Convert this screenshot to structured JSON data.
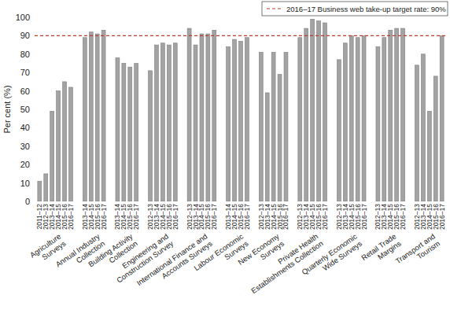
{
  "chart_data": {
    "type": "bar",
    "y_label": "Per cent (%)",
    "ylim": [
      0,
      100
    ],
    "yticks": [
      0,
      10,
      20,
      30,
      40,
      50,
      60,
      70,
      80,
      90,
      100
    ],
    "color": "#a3a3a3",
    "grid": false,
    "legend": "upper right",
    "target": {
      "value": 90,
      "label": "2016–17 Business web take-up target rate: 90%",
      "color": "#c0392b",
      "line_style": "dashed"
    },
    "groups": [
      {
        "label": "Agriculture\nSurveys",
        "categories": [
          "2011–12",
          "2012–13",
          "2013–14",
          "2014–15",
          "2015–16",
          "2016–17"
        ],
        "values": [
          11,
          15,
          49,
          60,
          65,
          62
        ]
      },
      {
        "label": "Annual Industry\nCollection",
        "categories": [
          "2013–14",
          "2014–15",
          "2015–16",
          "2016–17"
        ],
        "values": [
          89,
          92,
          91,
          93
        ]
      },
      {
        "label": "Building Activity\nCollection",
        "categories": [
          "2013–14",
          "2014–15",
          "2015–16",
          "2016–17"
        ],
        "values": [
          78,
          75,
          73,
          75
        ]
      },
      {
        "label": "Engineering and\nConstruction Survey",
        "categories": [
          "2012–13",
          "2013–14",
          "2014–15",
          "2015–16",
          "2016–17"
        ],
        "values": [
          71,
          85,
          86,
          85,
          86
        ]
      },
      {
        "label": "International Finance and\nAccounts Surveys",
        "categories": [
          "2012–13",
          "2013–14",
          "2014–15",
          "2015–16",
          "2016–17"
        ],
        "values": [
          94,
          85,
          91,
          91,
          93
        ]
      },
      {
        "label": "Labour Economic\nSurveys",
        "categories": [
          "2013–14",
          "2014–15",
          "2015–16",
          "2016–17"
        ],
        "values": [
          84,
          88,
          87,
          89
        ]
      },
      {
        "label": "New Economy\nSurveys",
        "categories": [
          "2012–13",
          "2013–14",
          "2014–15",
          "2015–16",
          "2016–17"
        ],
        "values": [
          81,
          59,
          81,
          69,
          81
        ]
      },
      {
        "label": "Private Health\nEstablishments Collection",
        "categories": [
          "2012–13",
          "2013–14",
          "2014–15",
          "2015–16",
          "2016–17"
        ],
        "values": [
          89,
          94,
          99,
          98,
          97
        ]
      },
      {
        "label": "Quarterly Economic\nWide Surveys",
        "categories": [
          "2012–13",
          "2013–14",
          "2014–15",
          "2015–16",
          "2016–17"
        ],
        "values": [
          77,
          86,
          90,
          89,
          90
        ]
      },
      {
        "label": "Retail Trade\nMargins",
        "categories": [
          "2012–13",
          "2013–14",
          "2014–15",
          "2015–16",
          "2016–17"
        ],
        "values": [
          84,
          89,
          93,
          94,
          94
        ]
      },
      {
        "label": "Transport and\nTourism",
        "categories": [
          "2012–13",
          "2013–14",
          "2014–15",
          "2015–16",
          "2016–17"
        ],
        "values": [
          74,
          80,
          49,
          68,
          90
        ]
      }
    ]
  }
}
